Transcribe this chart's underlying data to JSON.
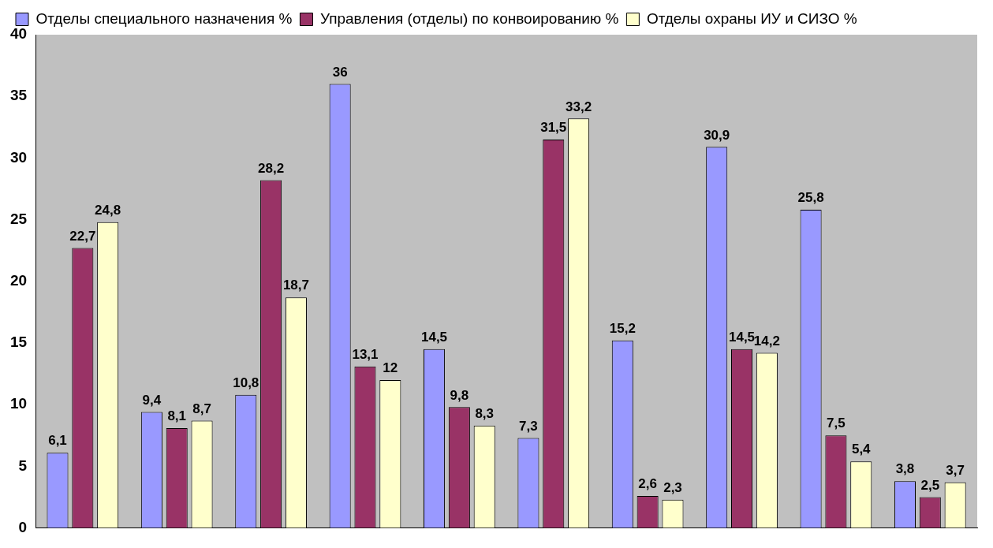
{
  "chart_data": {
    "type": "bar",
    "categories": [
      null,
      null,
      null,
      null,
      null,
      null,
      null,
      null,
      null,
      null
    ],
    "series": [
      {
        "name": "Отделы специального назначения %",
        "color": "#9999ff",
        "values": [
          6.1,
          9.4,
          10.8,
          36,
          14.5,
          7.3,
          15.2,
          30.9,
          25.8,
          3.8
        ],
        "value_labels": [
          "6,1",
          "9,4",
          "10,8",
          "36",
          "14,5",
          "7,3",
          "15,2",
          "30,9",
          "25,8",
          "3,8"
        ]
      },
      {
        "name": "Управления (отделы) по конвоированию %",
        "color": "#993366",
        "values": [
          22.7,
          8.1,
          28.2,
          13.1,
          9.8,
          31.5,
          2.6,
          14.5,
          7.5,
          2.5
        ],
        "value_labels": [
          "22,7",
          "8,1",
          "28,2",
          "13,1",
          "9,8",
          "31,5",
          "2,6",
          "14,5",
          "7,5",
          "2,5"
        ]
      },
      {
        "name": "Отделы охраны ИУ и СИЗО %",
        "color": "#ffffcc",
        "values": [
          24.8,
          8.7,
          18.7,
          12,
          8.3,
          33.2,
          2.3,
          14.2,
          5.4,
          3.7
        ],
        "value_labels": [
          "24,8",
          "8,7",
          "18,7",
          "12",
          "8,3",
          "33,2",
          "2,3",
          "14,2",
          "5,4",
          "3,7"
        ]
      }
    ],
    "ylim": [
      0,
      40
    ],
    "yticks": [
      0,
      5,
      10,
      15,
      20,
      25,
      30,
      35,
      40
    ],
    "grid": false,
    "legend": "top"
  }
}
